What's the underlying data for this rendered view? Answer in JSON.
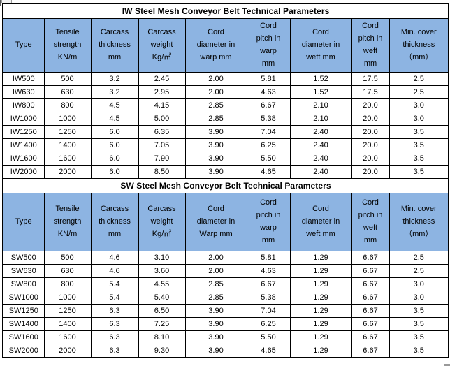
{
  "colors": {
    "header_bg": "#8DB4E2",
    "border": "#000000",
    "title_bg": "#FFFFFF",
    "text": "#000000"
  },
  "sections": [
    {
      "title": "IW Steel Mesh Conveyor Belt Technical Parameters",
      "headers": [
        "Type",
        "Tensile\nstrength\nKN/m",
        "Carcass\nthickness\nmm",
        "Carcass\nweight\nKg/㎡",
        "Cord\ndiameter in\nwarp mm",
        "Cord\npitch in\nwarp\nmm",
        "Cord\ndiameter in\nweft mm",
        "Cord\npitch in\nweft\nmm",
        "Min. cover\nthickness\n（mm）"
      ],
      "rows": [
        [
          "IW500",
          "500",
          "3.2",
          "2.45",
          "2.00",
          "5.81",
          "1.52",
          "17.5",
          "2.5"
        ],
        [
          "IW630",
          "630",
          "3.2",
          "2.95",
          "2.00",
          "4.63",
          "1.52",
          "17.5",
          "2.5"
        ],
        [
          "IW800",
          "800",
          "4.5",
          "4.15",
          "2.85",
          "6.67",
          "2.10",
          "20.0",
          "3.0"
        ],
        [
          "IW1000",
          "1000",
          "4.5",
          "5.00",
          "2.85",
          "5.38",
          "2.10",
          "20.0",
          "3.0"
        ],
        [
          "IW1250",
          "1250",
          "6.0",
          "6.35",
          "3.90",
          "7.04",
          "2.40",
          "20.0",
          "3.5"
        ],
        [
          "IW1400",
          "1400",
          "6.0",
          "7.05",
          "3.90",
          "6.25",
          "2.40",
          "20.0",
          "3.5"
        ],
        [
          "IW1600",
          "1600",
          "6.0",
          "7.90",
          "3.90",
          "5.50",
          "2.40",
          "20.0",
          "3.5"
        ],
        [
          "IW2000",
          "2000",
          "6.0",
          "8.50",
          "3.90",
          "4.65",
          "2.40",
          "20.0",
          "3.5"
        ]
      ]
    },
    {
      "title": "SW Steel Mesh Conveyor Belt Technical Parameters",
      "headers": [
        "Type",
        "Tensile\nstrength\nKN/m",
        "Carcass\nthickness\nmm",
        "Carcass\nweight\nKg/㎡",
        "Cord\ndiameter in\nWarp mm",
        "Cord\npitch in\nwarp\nmm",
        "Cord\ndiameter in\nweft mm",
        "Cord\npitch in\nweft\nmm",
        "Min. cover\nthickness\n（mm）"
      ],
      "rows": [
        [
          "SW500",
          "500",
          "4.6",
          "3.10",
          "2.00",
          "5.81",
          "1.29",
          "6.67",
          "2.5"
        ],
        [
          "SW630",
          "630",
          "4.6",
          "3.60",
          "2.00",
          "4.63",
          "1.29",
          "6.67",
          "2.5"
        ],
        [
          "SW800",
          "800",
          "5.4",
          "4.55",
          "2.85",
          "6.67",
          "1.29",
          "6.67",
          "3.0"
        ],
        [
          "SW1000",
          "1000",
          "5.4",
          "5.40",
          "2.85",
          "5.38",
          "1.29",
          "6.67",
          "3.0"
        ],
        [
          "SW1250",
          "1250",
          "6.3",
          "6.50",
          "3.90",
          "7.04",
          "1.29",
          "6.67",
          "3.5"
        ],
        [
          "SW1400",
          "1400",
          "6.3",
          "7.25",
          "3.90",
          "6.25",
          "1.29",
          "6.67",
          "3.5"
        ],
        [
          "SW1600",
          "1600",
          "6.3",
          "8.10",
          "3.90",
          "5.50",
          "1.29",
          "6.67",
          "3.5"
        ],
        [
          "SW2000",
          "2000",
          "6.3",
          "9.30",
          "3.90",
          "4.65",
          "1.29",
          "6.67",
          "3.5"
        ]
      ]
    }
  ]
}
